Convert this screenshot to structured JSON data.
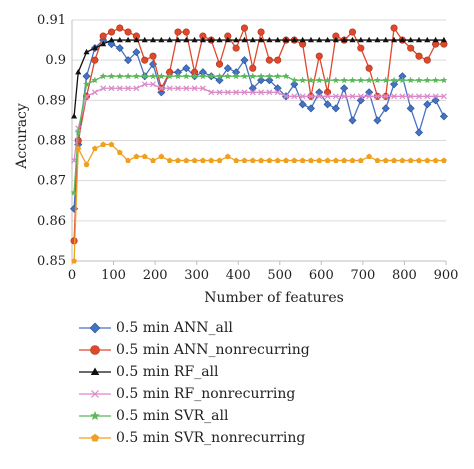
{
  "chart_data": {
    "type": "line",
    "title": "",
    "xlabel": "Number of features",
    "ylabel": "Accuracy",
    "xlim": [
      0,
      900
    ],
    "ylim": [
      0.85,
      0.91
    ],
    "xticks": [
      0,
      100,
      200,
      300,
      400,
      500,
      600,
      700,
      800,
      900
    ],
    "yticks": [
      0.85,
      0.86,
      0.87,
      0.88,
      0.89,
      0.9,
      0.91
    ],
    "xtick_labels": [
      "0",
      "100",
      "200",
      "300",
      "400",
      "500",
      "600",
      "700",
      "800",
      "900"
    ],
    "ytick_labels": [
      "0.85",
      "0.86",
      "0.87",
      "0.88",
      "0.89",
      "0.9",
      "0.91"
    ],
    "grid": "horizontal",
    "legend_position": "bottom",
    "x": [
      5,
      15,
      35,
      55,
      75,
      95,
      115,
      135,
      155,
      175,
      195,
      215,
      235,
      255,
      275,
      295,
      315,
      335,
      355,
      375,
      395,
      415,
      435,
      455,
      475,
      495,
      515,
      535,
      555,
      575,
      595,
      615,
      635,
      655,
      675,
      695,
      715,
      735,
      755,
      775,
      795,
      815,
      835,
      855,
      875,
      895
    ],
    "series": [
      {
        "name": "0.5 min ANN_all",
        "color": "#4472c4",
        "marker": "diamond",
        "values": [
          0.863,
          0.879,
          0.896,
          0.903,
          0.905,
          0.904,
          0.903,
          0.9,
          0.902,
          0.896,
          0.899,
          0.892,
          0.897,
          0.897,
          0.898,
          0.896,
          0.897,
          0.896,
          0.895,
          0.898,
          0.897,
          0.9,
          0.893,
          0.895,
          0.895,
          0.893,
          0.891,
          0.894,
          0.889,
          0.888,
          0.892,
          0.889,
          0.888,
          0.893,
          0.885,
          0.89,
          0.892,
          0.885,
          0.888,
          0.894,
          0.896,
          0.888,
          0.882,
          0.889,
          0.89,
          0.886
        ]
      },
      {
        "name": "0.5 min ANN_nonrecurring",
        "color": "#e0482c",
        "marker": "circle",
        "values": [
          0.855,
          0.88,
          0.891,
          0.9,
          0.906,
          0.907,
          0.908,
          0.907,
          0.906,
          0.9,
          0.901,
          0.893,
          0.897,
          0.907,
          0.907,
          0.897,
          0.906,
          0.905,
          0.899,
          0.906,
          0.903,
          0.908,
          0.898,
          0.907,
          0.9,
          0.9,
          0.905,
          0.905,
          0.904,
          0.891,
          0.901,
          0.892,
          0.906,
          0.905,
          0.907,
          0.903,
          0.898,
          0.891,
          0.891,
          0.908,
          0.905,
          0.903,
          0.901,
          0.9,
          0.904,
          0.904
        ]
      },
      {
        "name": "0.5 min RF_all",
        "color": "#111111",
        "marker": "triangle",
        "values": [
          0.886,
          0.897,
          0.902,
          0.903,
          0.904,
          0.905,
          0.905,
          0.905,
          0.905,
          0.905,
          0.905,
          0.905,
          0.905,
          0.905,
          0.905,
          0.905,
          0.905,
          0.905,
          0.905,
          0.905,
          0.905,
          0.905,
          0.905,
          0.905,
          0.905,
          0.905,
          0.905,
          0.905,
          0.905,
          0.905,
          0.905,
          0.905,
          0.905,
          0.905,
          0.905,
          0.905,
          0.905,
          0.905,
          0.905,
          0.905,
          0.905,
          0.905,
          0.905,
          0.905,
          0.905,
          0.905
        ]
      },
      {
        "name": "0.5 min RF_nonrecurring",
        "color": "#d98ac8",
        "marker": "x",
        "values": [
          0.875,
          0.883,
          0.891,
          0.892,
          0.893,
          0.893,
          0.893,
          0.893,
          0.893,
          0.894,
          0.894,
          0.893,
          0.893,
          0.893,
          0.893,
          0.893,
          0.893,
          0.892,
          0.892,
          0.892,
          0.892,
          0.892,
          0.892,
          0.892,
          0.892,
          0.892,
          0.891,
          0.891,
          0.891,
          0.891,
          0.891,
          0.891,
          0.891,
          0.891,
          0.891,
          0.891,
          0.891,
          0.891,
          0.891,
          0.891,
          0.891,
          0.891,
          0.891,
          0.891,
          0.891,
          0.891
        ]
      },
      {
        "name": "0.5 min SVR_all",
        "color": "#5cb85c",
        "marker": "star",
        "values": [
          0.867,
          0.882,
          0.894,
          0.895,
          0.896,
          0.896,
          0.896,
          0.896,
          0.896,
          0.896,
          0.896,
          0.896,
          0.896,
          0.896,
          0.896,
          0.896,
          0.896,
          0.896,
          0.896,
          0.896,
          0.896,
          0.896,
          0.896,
          0.896,
          0.896,
          0.896,
          0.896,
          0.895,
          0.895,
          0.895,
          0.895,
          0.895,
          0.895,
          0.895,
          0.895,
          0.895,
          0.895,
          0.895,
          0.895,
          0.895,
          0.895,
          0.895,
          0.895,
          0.895,
          0.895,
          0.895
        ]
      },
      {
        "name": "0.5 min SVR_nonrecurring",
        "color": "#f0a020",
        "marker": "pentagon",
        "values": [
          0.85,
          0.878,
          0.874,
          0.878,
          0.879,
          0.879,
          0.877,
          0.875,
          0.876,
          0.876,
          0.875,
          0.876,
          0.875,
          0.875,
          0.875,
          0.875,
          0.875,
          0.875,
          0.875,
          0.876,
          0.875,
          0.875,
          0.875,
          0.875,
          0.875,
          0.875,
          0.875,
          0.875,
          0.875,
          0.875,
          0.875,
          0.875,
          0.875,
          0.875,
          0.875,
          0.875,
          0.876,
          0.875,
          0.875,
          0.875,
          0.875,
          0.875,
          0.875,
          0.875,
          0.875,
          0.875
        ]
      }
    ]
  }
}
